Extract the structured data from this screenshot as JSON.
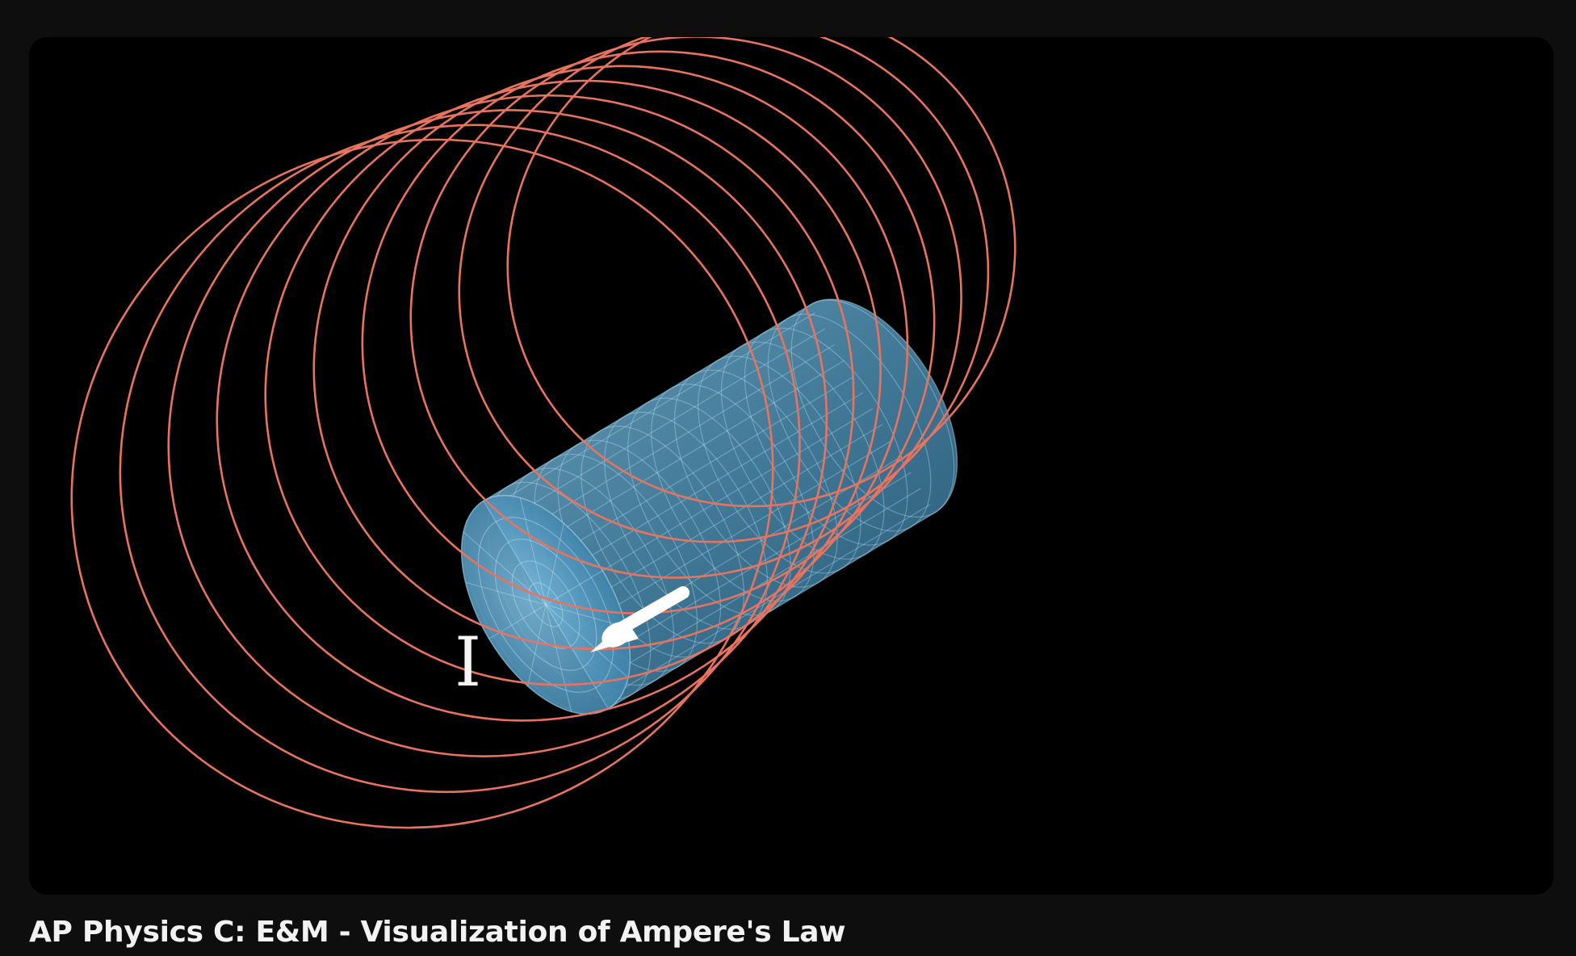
{
  "video": {
    "title": "AP Physics C: E&M - Visualization of Ampere's Law",
    "scene": {
      "current_label": "I",
      "field_loop_color": "#e8735e",
      "wire_color": "#4f93b8",
      "arrow_color": "#ffffff",
      "background_color": "#000000"
    }
  }
}
